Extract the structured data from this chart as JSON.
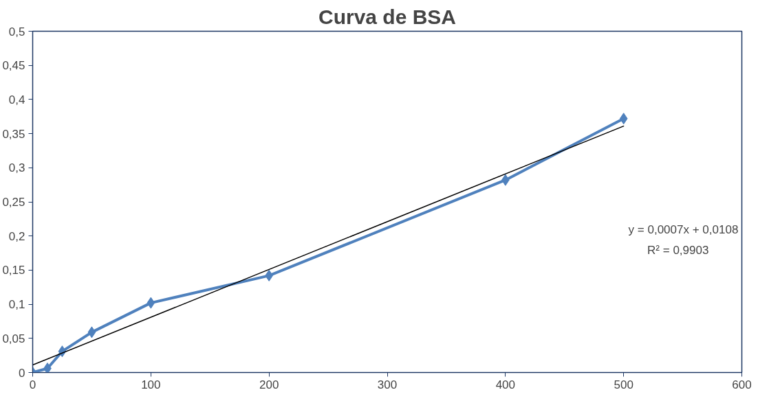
{
  "chart_data": {
    "type": "line",
    "title": "Curva de BSA",
    "x": [
      0,
      12.5,
      25,
      50,
      100,
      200,
      400,
      500
    ],
    "series": [
      {
        "color": "#4f81bd",
        "values": [
          0,
          0.006,
          0.031,
          0.059,
          0.102,
          0.142,
          0.282,
          0.372
        ],
        "marker": "diamond"
      },
      {
        "type": "line",
        "color": "#000000",
        "x": [
          0,
          500
        ],
        "values": [
          0.011,
          0.361
        ],
        "marker": "none"
      }
    ],
    "xlim": [
      0,
      600
    ],
    "xticks": [
      0,
      100,
      200,
      300,
      400,
      500,
      600
    ],
    "ylim": [
      0,
      0.5
    ],
    "yticks": [
      0,
      {
        "value": 0.05,
        "label": "0,05"
      },
      {
        "value": 0.1,
        "label": "0,1"
      },
      {
        "value": 0.15,
        "label": "0,15"
      },
      {
        "value": 0.2,
        "label": "0,2"
      },
      {
        "value": 0.25,
        "label": "0,25"
      },
      {
        "value": 0.3,
        "label": "0,3"
      },
      {
        "value": 0.35,
        "label": "0,35"
      },
      {
        "value": 0.4,
        "label": "0,4"
      },
      {
        "value": 0.45,
        "label": "0,45"
      },
      {
        "value": 0.5,
        "label": "0,5"
      }
    ],
    "grid": false,
    "annotations": [
      "y = 0,0007x + 0,0108",
      "R² = 0,9903"
    ]
  }
}
